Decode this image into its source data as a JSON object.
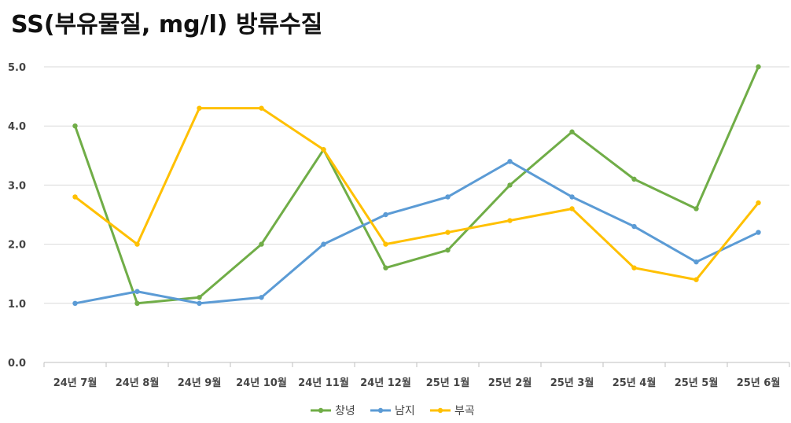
{
  "chart_data": {
    "type": "line",
    "title": "SS(부유물질, mg/l) 방류수질",
    "xlabel": "",
    "ylabel": "",
    "ylim": [
      0,
      5
    ],
    "yticks": [
      "0.0",
      "1.0",
      "2.0",
      "3.0",
      "4.0",
      "5.0"
    ],
    "grid": true,
    "legend_position": "bottom",
    "categories": [
      "24년 7월",
      "24년 8월",
      "24년 9월",
      "24년 10월",
      "24년 11월",
      "24년 12월",
      "25년 1월",
      "25년 2월",
      "25년 3월",
      "25년 4월",
      "25년 5월",
      "25년 6월"
    ],
    "series": [
      {
        "name": "창녕",
        "color": "#70ad47",
        "values": [
          4.0,
          1.0,
          1.1,
          2.0,
          3.6,
          1.6,
          1.9,
          3.0,
          3.9,
          3.1,
          2.6,
          5.0
        ]
      },
      {
        "name": "남지",
        "color": "#5b9bd5",
        "values": [
          1.0,
          1.2,
          1.0,
          1.1,
          2.0,
          2.5,
          2.8,
          3.4,
          2.8,
          2.3,
          1.7,
          2.2
        ]
      },
      {
        "name": "부곡",
        "color": "#ffc000",
        "values": [
          2.8,
          2.0,
          4.3,
          4.3,
          3.6,
          2.0,
          2.2,
          2.4,
          2.6,
          1.6,
          1.4,
          2.7
        ]
      }
    ]
  }
}
